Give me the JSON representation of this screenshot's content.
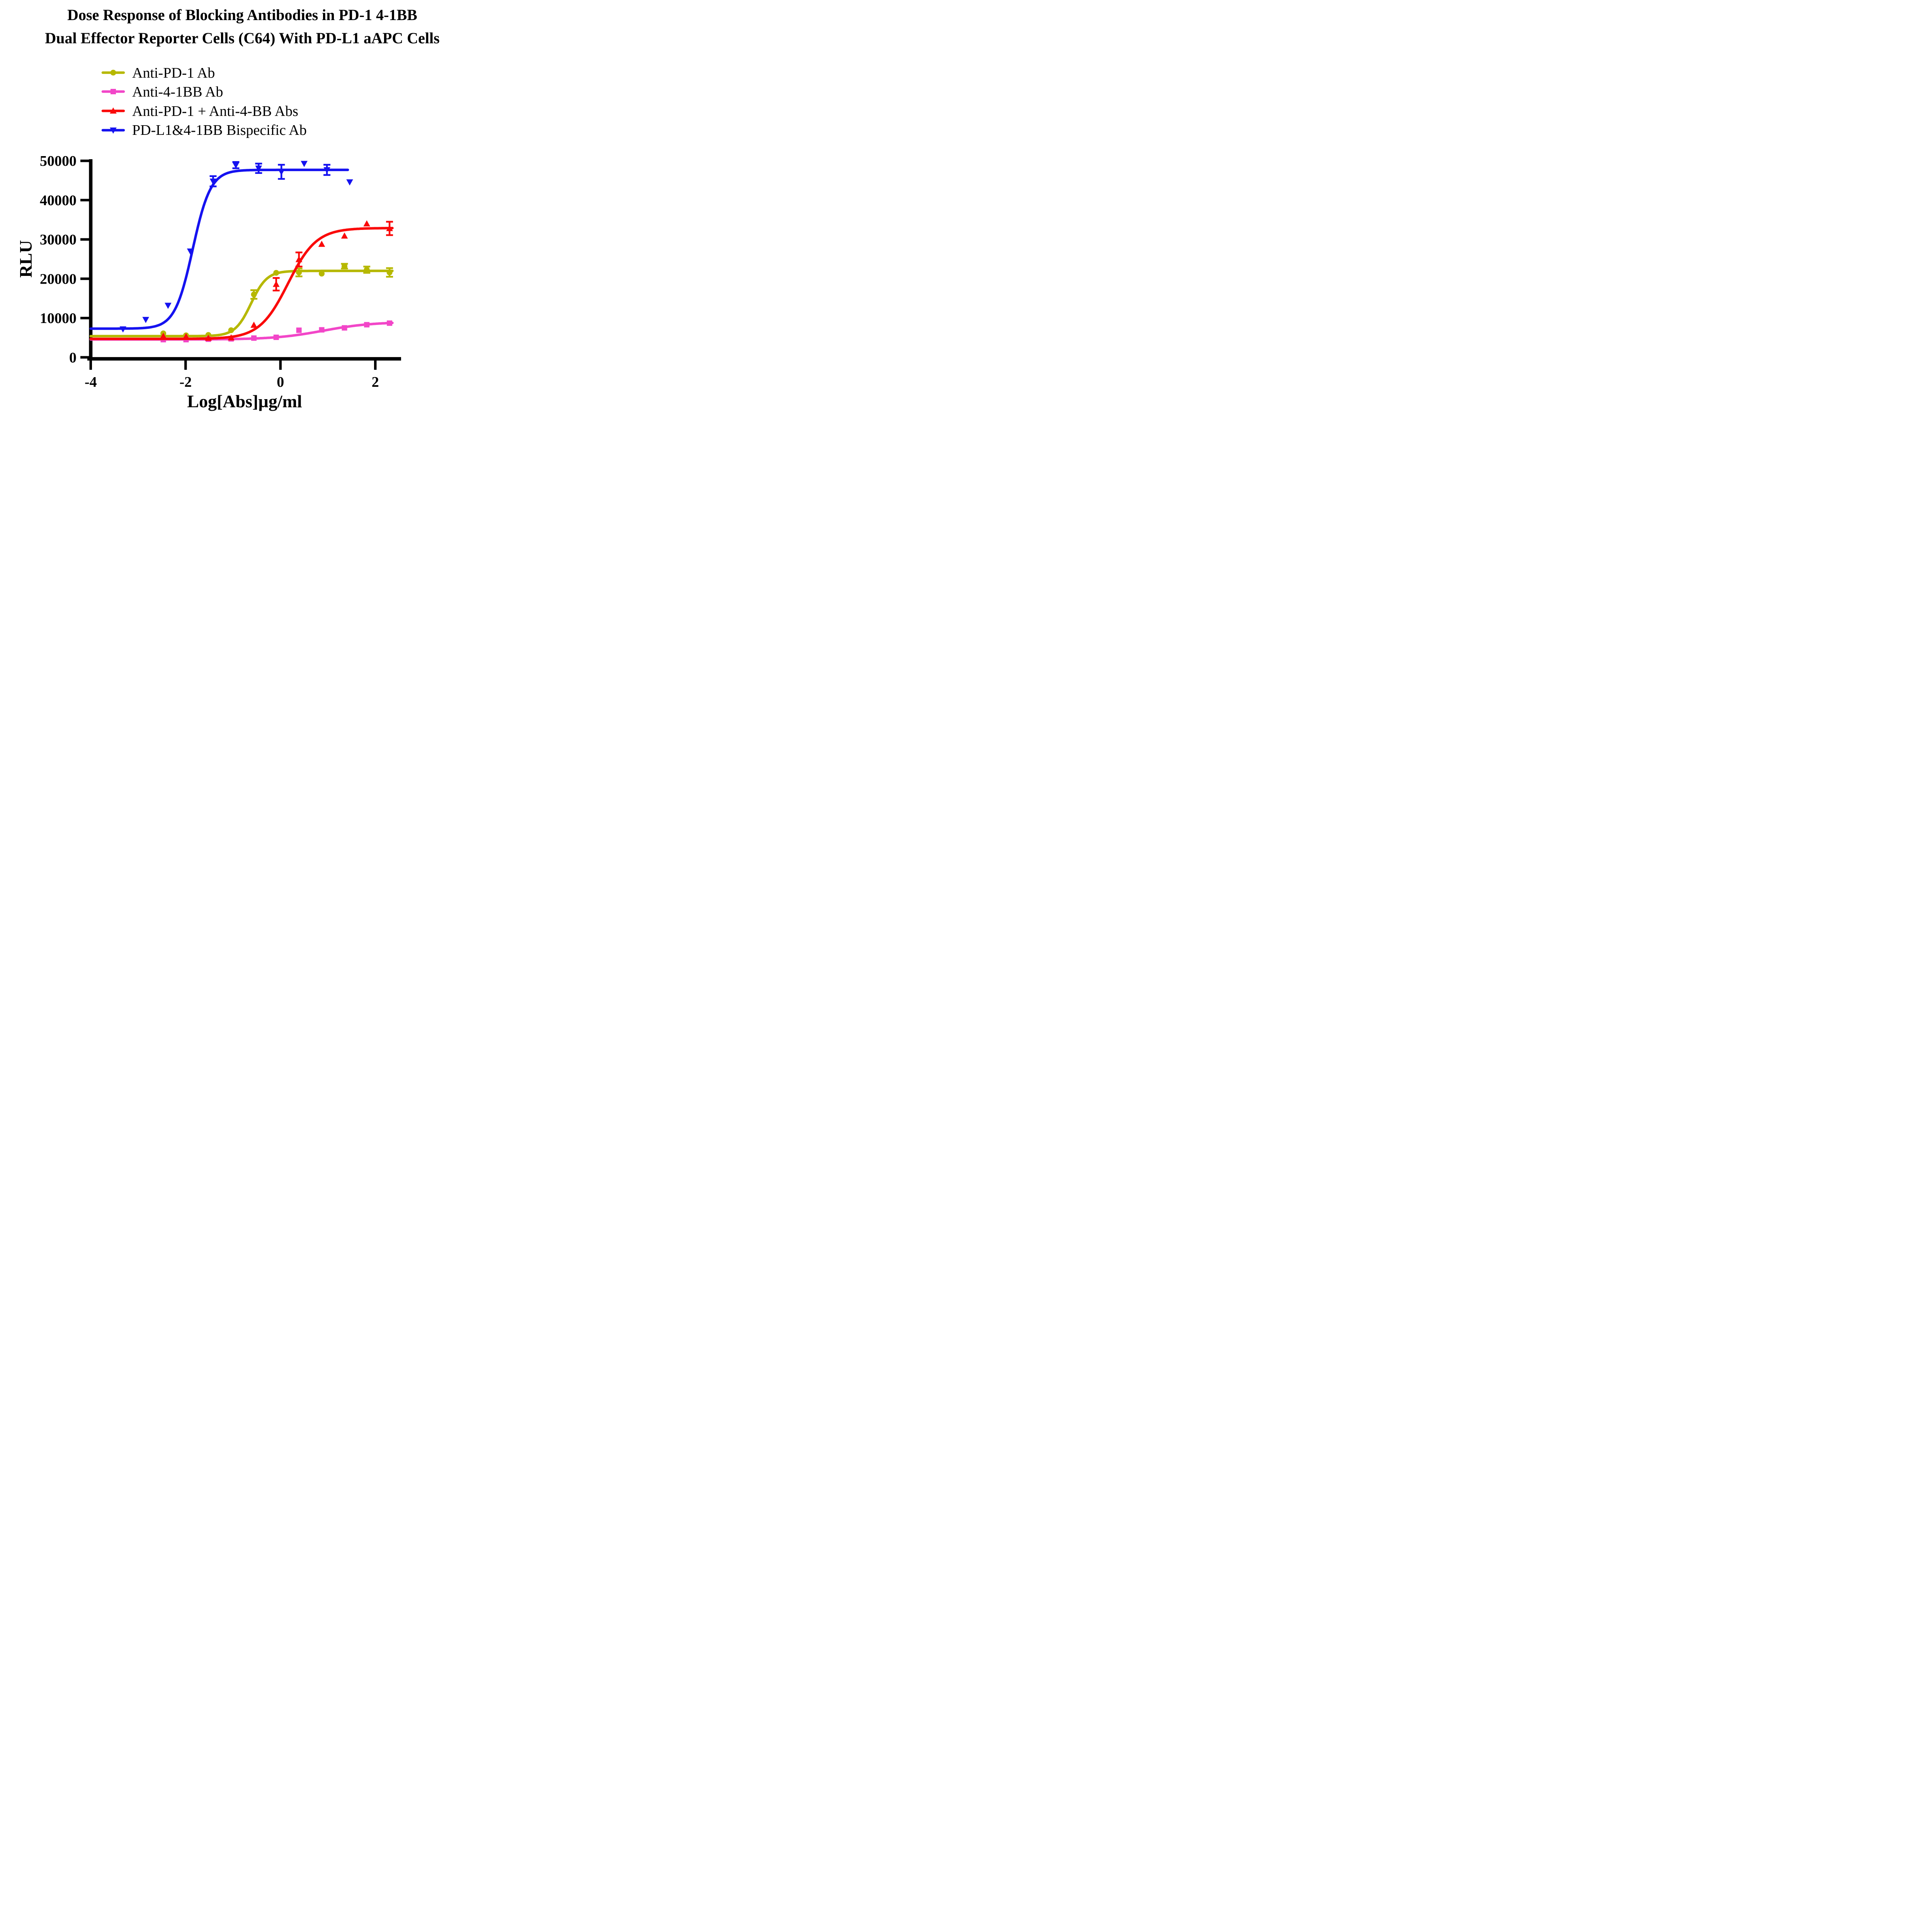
{
  "title": {
    "line1": "Dose Response of Blocking Antibodies in PD-1 4-1BB",
    "line2": "Dual Effector Reporter Cells (C64) With PD-L1 aAPC Cells"
  },
  "legend": [
    {
      "label": "Anti-PD-1 Ab",
      "color": "#b6b800",
      "marker": "circle"
    },
    {
      "label": "Anti-4-1BB Ab",
      "color": "#f246c8",
      "marker": "square"
    },
    {
      "label": "Anti-PD-1 + Anti-4-BB Abs",
      "color": "#fa0a0a",
      "marker": "triangle-up"
    },
    {
      "label": "PD-L1&4-1BB Bispecific Ab",
      "color": "#1512f0",
      "marker": "triangle-down"
    }
  ],
  "chart_data": {
    "type": "scatter",
    "title": "Dose Response of Blocking Antibodies in PD-1 4-1BB Dual Effector Reporter Cells (C64) With PD-L1 aAPC Cells",
    "xlabel": "Log[Abs]µg/ml",
    "ylabel": "RLU",
    "xlim": [
      -4,
      2.55
    ],
    "ylim": [
      0,
      50000
    ],
    "xticks": [
      -4,
      -2,
      0,
      2
    ],
    "yticks": [
      0,
      10000,
      20000,
      30000,
      40000,
      50000
    ],
    "grid": false,
    "legend_position": "above-plot-left",
    "series": [
      {
        "name": "Anti-PD-1 Ab",
        "key": "anti-pd-1-ab",
        "color": "#b6b800",
        "marker": "circle",
        "x": [
          -2.47,
          -1.99,
          -1.52,
          -1.04,
          -0.56,
          -0.09,
          0.39,
          0.87,
          1.35,
          1.82,
          2.3
        ],
        "y": [
          6100,
          5600,
          5700,
          6900,
          16000,
          21500,
          21600,
          21300,
          23200,
          22300,
          21600
        ],
        "err": [
          0,
          0,
          0,
          0,
          1100,
          0,
          1000,
          0,
          600,
          800,
          1100
        ],
        "fit": {
          "bottom": 5400,
          "top": 22000,
          "logec50": -0.62,
          "hill": 2.6,
          "xmin": -4,
          "xmax": 2.36
        }
      },
      {
        "name": "Anti-4-1BB Ab",
        "key": "anti-4-1bb-ab",
        "color": "#f246c8",
        "marker": "square",
        "x": [
          -2.47,
          -1.99,
          -1.52,
          -1.04,
          -0.56,
          -0.09,
          0.39,
          0.87,
          1.35,
          1.82,
          2.3
        ],
        "y": [
          4500,
          4500,
          4600,
          4700,
          4900,
          5100,
          6900,
          7000,
          7500,
          8300,
          8700
        ],
        "err": [
          0,
          0,
          0,
          0,
          0,
          0,
          0,
          0,
          0,
          0,
          0
        ],
        "fit": {
          "bottom": 4550,
          "top": 9000,
          "logec50": 0.9,
          "hill": 0.85,
          "xmin": -4,
          "xmax": 2.36
        }
      },
      {
        "name": "Anti-PD-1 + Anti-4-BB Abs",
        "key": "anti-pd-1-plus-anti-4-bb-abs",
        "color": "#fa0a0a",
        "marker": "triangle-up",
        "x": [
          -2.47,
          -1.99,
          -1.52,
          -1.04,
          -0.56,
          -0.09,
          0.39,
          0.87,
          1.35,
          1.82,
          2.3
        ],
        "y": [
          5400,
          5300,
          4900,
          5000,
          8200,
          18600,
          24900,
          28800,
          30900,
          34000,
          32800
        ],
        "err": [
          0,
          0,
          0,
          0,
          0,
          1600,
          1800,
          0,
          0,
          0,
          1700
        ],
        "fit": {
          "bottom": 4700,
          "top": 32900,
          "logec50": 0.16,
          "hill": 1.45,
          "xmin": -4,
          "xmax": 2.36
        }
      },
      {
        "name": "PD-L1&4-1BB Bispecific Ab",
        "key": "pd-l1-4-1bb-bispecific-ab",
        "color": "#1512f0",
        "marker": "triangle-down",
        "x": [
          -3.32,
          -2.84,
          -2.37,
          -1.9,
          -1.42,
          -0.94,
          -0.46,
          0.02,
          0.5,
          0.98,
          1.46
        ],
        "y": [
          7200,
          9600,
          13200,
          27000,
          44800,
          48900,
          48100,
          47200,
          49300,
          47700,
          44600
        ],
        "err": [
          0,
          0,
          0,
          0,
          1300,
          800,
          1200,
          1800,
          0,
          1300,
          0
        ],
        "fit": {
          "bottom": 7300,
          "top": 47700,
          "logec50": -1.85,
          "hill": 2.3,
          "xmin": -4,
          "xmax": 1.42
        }
      }
    ]
  }
}
